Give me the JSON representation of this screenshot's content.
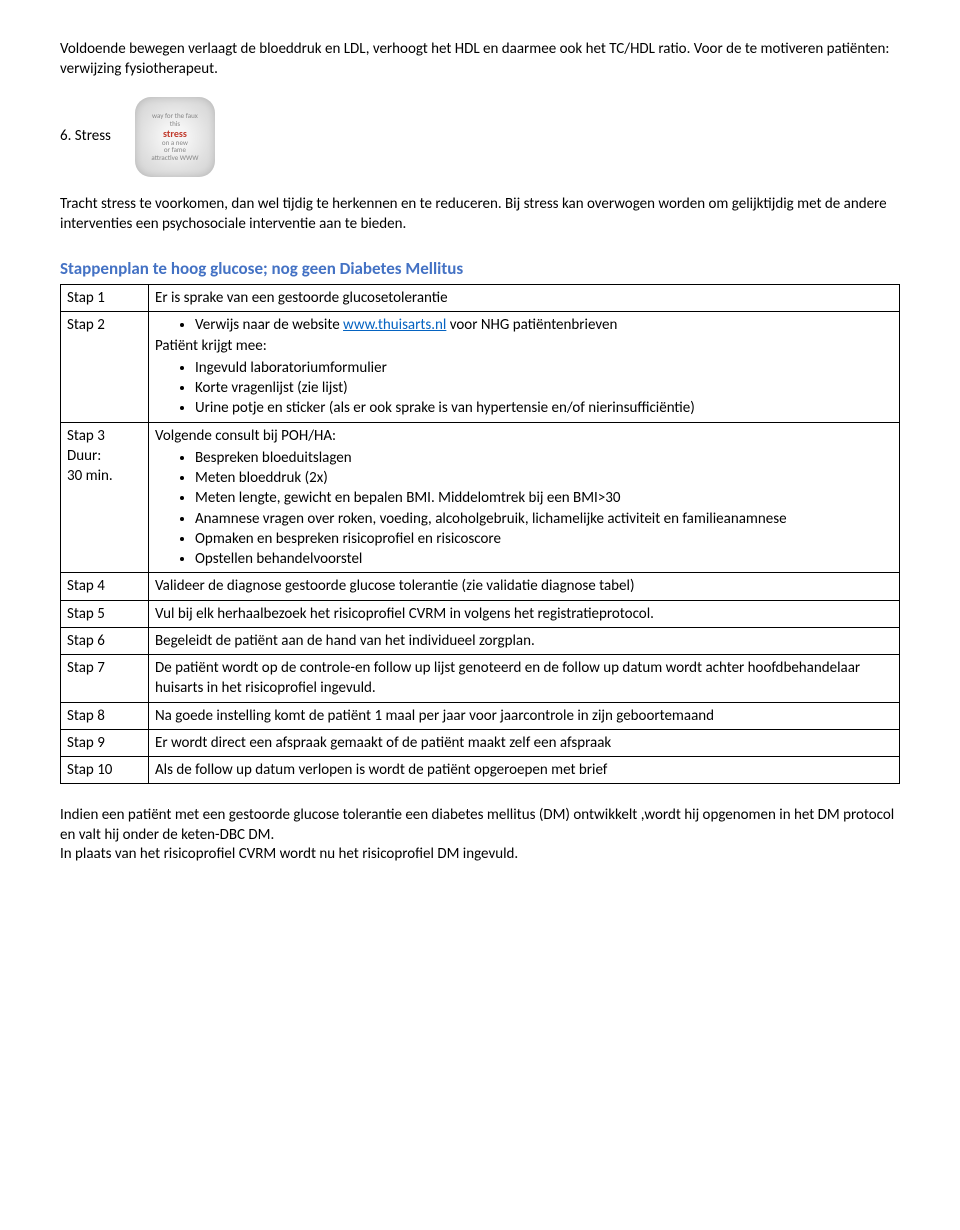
{
  "colors": {
    "text": "#000000",
    "link": "#0563c1",
    "heading_blue": "#4472c4",
    "icon_accent": "#c0392b",
    "background": "#ffffff",
    "border": "#000000"
  },
  "typography": {
    "body_fontsize_pt": 11,
    "heading_blue_fontsize_pt": 13,
    "font_family": "Calibri"
  },
  "intro_para": "Voldoende bewegen verlaagt de bloeddruk en LDL, verhoogt het HDL en daarmee ook het TC/HDL ratio. Voor de te motiveren patiënten: verwijzing fysiotherapeut.",
  "section6": {
    "heading": "6. Stress",
    "icon_lines": [
      "way for the faux",
      "this",
      "stress",
      "on a new",
      "or fame",
      "attractive WWW"
    ],
    "body": "Tracht stress te voorkomen, dan wel tijdig te herkennen en te reduceren. Bij stress kan overwogen worden om gelijktijdig met de andere interventies een psychosociale interventie aan te bieden."
  },
  "stappenplan": {
    "heading": "Stappenplan te hoog glucose; nog geen Diabetes Mellitus",
    "rows": {
      "stap1": {
        "label": "Stap 1",
        "text": "Er is sprake van een gestoorde glucosetolerantie"
      },
      "stap2": {
        "label": "Stap 2",
        "bullet1_prefix": "Verwijs naar de website ",
        "bullet1_link": "www.thuisarts.nl",
        "bullet1_suffix": " voor NHG patiëntenbrieven",
        "sub_intro": "Patiënt krijgt  mee:",
        "sub_items": [
          "Ingevuld laboratoriumformulier",
          "Korte vragenlijst (zie lijst)",
          "Urine potje en sticker (als er ook sprake is van hypertensie en/of nierinsufficiëntie)"
        ]
      },
      "stap3": {
        "label_l1": "Stap 3",
        "label_l2": "Duur:",
        "label_l3": "30 min.",
        "intro": "Volgende consult bij POH/HA:",
        "items": [
          "Bespreken bloeduitslagen",
          "Meten bloeddruk (2x)",
          "Meten lengte, gewicht en bepalen BMI. Middelomtrek bij een BMI>30",
          "Anamnese vragen over roken, voeding, alcoholgebruik, lichamelijke activiteit en familieanamnese",
          "Opmaken en bespreken risicoprofiel en risicoscore",
          "Opstellen behandelvoorstel"
        ]
      },
      "stap4": {
        "label": "Stap 4",
        "text": "Valideer de diagnose gestoorde glucose tolerantie  (zie validatie diagnose tabel)"
      },
      "stap5": {
        "label": "Stap 5",
        "text": "Vul bij elk herhaalbezoek het risicoprofiel CVRM in volgens het registratieprotocol."
      },
      "stap6": {
        "label": "Stap 6",
        "text": "Begeleidt de patiënt aan de hand van het individueel zorgplan."
      },
      "stap7": {
        "label": "Stap 7",
        "text": "De patiënt wordt op de controle-en follow up lijst genoteerd en de follow up datum wordt achter hoofdbehandelaar huisarts in het risicoprofiel ingevuld."
      },
      "stap8": {
        "label": "Stap 8",
        "text": "Na goede instelling komt de patiënt 1 maal per jaar voor jaarcontrole in zijn geboortemaand"
      },
      "stap9": {
        "label": "Stap 9",
        "text": "Er wordt direct een afspraak gemaakt of de patiënt maakt zelf een afspraak"
      },
      "stap10": {
        "label": "Stap 10",
        "text": "Als de follow up datum verlopen is wordt de patiënt opgeroepen met brief"
      }
    }
  },
  "closing": {
    "p1": "Indien een patiënt met een gestoorde glucose tolerantie een diabetes mellitus (DM) ontwikkelt ,wordt hij opgenomen in het DM protocol en valt hij onder  de keten-DBC DM.",
    "p2": "In plaats van het risicoprofiel CVRM wordt nu het risicoprofiel DM ingevuld."
  }
}
